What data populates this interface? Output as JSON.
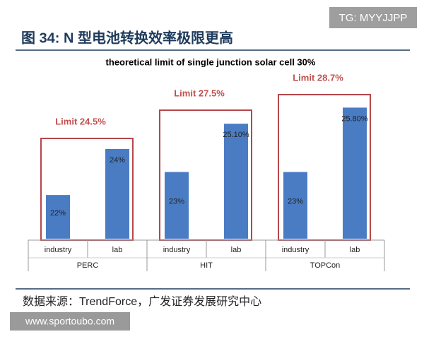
{
  "header": {
    "title": "图 34:  N 型电池转换效率极限更高",
    "badge": "TG: MYYJJPP"
  },
  "chart_data": {
    "type": "bar",
    "title": "theoretical limit of single junction solar cell 30%",
    "categories": [
      "PERC",
      "HIT",
      "TOPCon"
    ],
    "series": [
      {
        "name": "industry",
        "color": "#4a7cc4",
        "values": [
          22,
          23,
          23
        ],
        "value_labels": [
          "22%",
          "23%",
          "23%"
        ]
      },
      {
        "name": "lab",
        "color": "#4a7cc4",
        "values": [
          24,
          25.1,
          25.8
        ],
        "value_labels": [
          "24%",
          "25.10%",
          "25.80%"
        ]
      }
    ],
    "annotations": [
      "Limit 24.5%",
      "Limit 27.5%",
      "Limit 28.7%"
    ],
    "ylim": [
      20.1,
      27.5
    ]
  },
  "footer": {
    "source": "数据来源：TrendForce，广发证券发展研究中心",
    "watermark": "www.sportoubo.com"
  }
}
